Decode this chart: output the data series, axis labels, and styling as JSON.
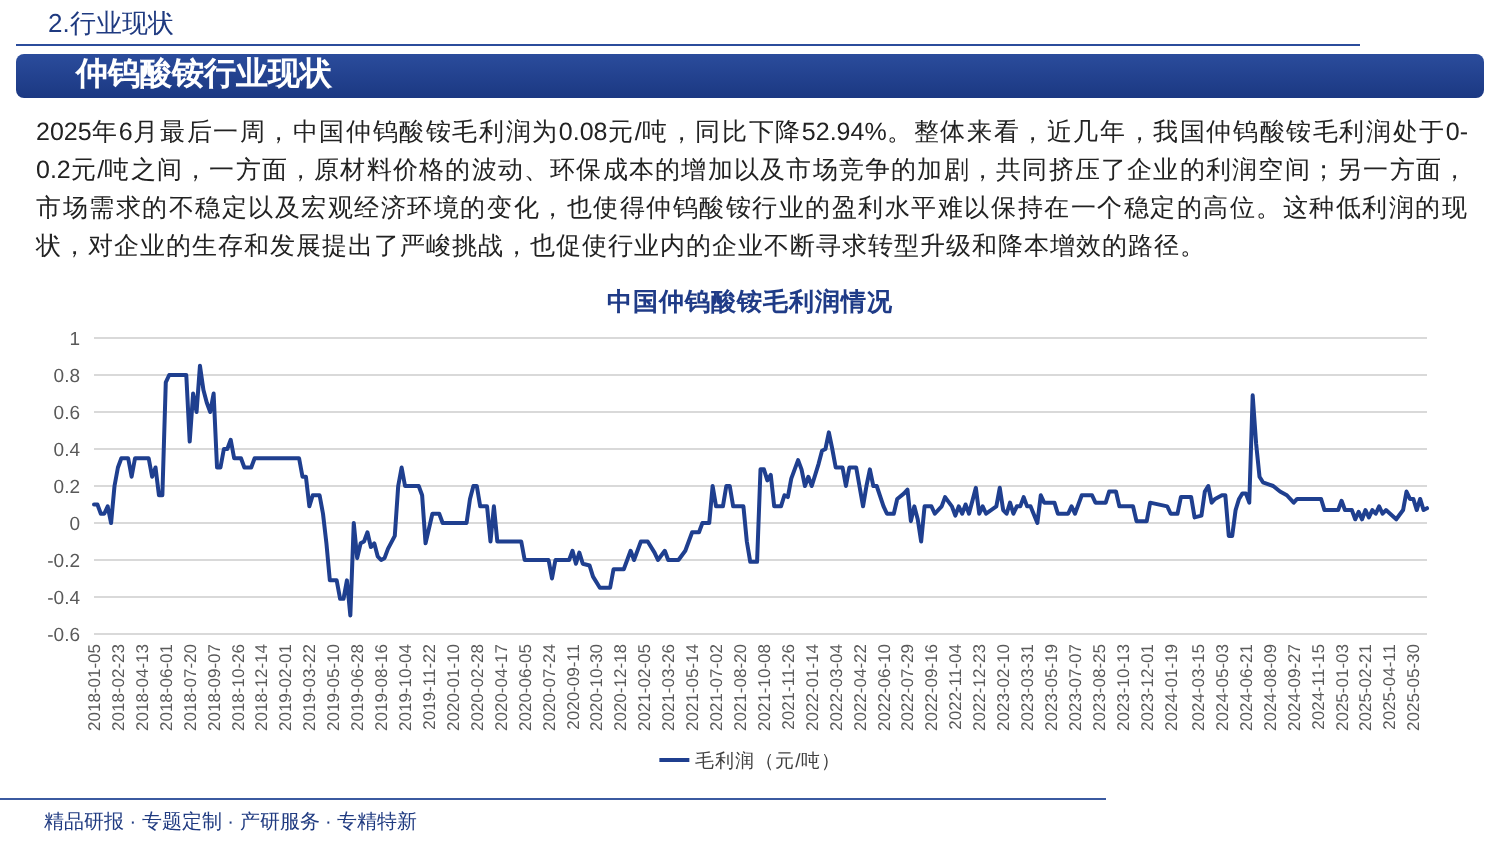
{
  "chart_data": {
    "type": "line",
    "title": "中国仲钨酸铵毛利润情况",
    "annotations": [
      "2.行业现状",
      "仲钨酸铵行业现状",
      "2025年6月最后一周，中国仲钨酸铵毛利润为0.08元/吨，同比下降52.94%。整体来看，近几年，我国仲钨酸铵毛利润处于0-0.2元/吨之间，一方面，原材料价格的波动、环保成本的增加以及市场竞争的加剧，共同挤压了企业的利润空间；另一方面，市场需求的不稳定以及宏观经济环境的变化，也使得仲钨酸铵行业的盈利水平难以保持在一个稳定的高位。这种低利润的现状，对企业的生存和发展提出了严峻挑战，也促使行业内的企业不断寻求转型升级和降本增效的路径。",
      "精品研报 · 专题定制 · 产研服务 · 专精特新"
    ],
    "x": [
      "2018-01-05",
      "2018-01-12",
      "2018-01-19",
      "2018-01-26",
      "2018-02-02",
      "2018-02-09",
      "2018-02-16",
      "2018-02-23",
      "2018-03-02",
      "2018-03-16",
      "2018-03-23",
      "2018-03-30",
      "2018-04-27",
      "2018-05-04",
      "2018-05-11",
      "2018-05-18",
      "2018-05-25",
      "2018-06-01",
      "2018-06-08",
      "2018-07-13",
      "2018-07-20",
      "2018-07-27",
      "2018-08-03",
      "2018-08-10",
      "2018-08-17",
      "2018-08-24",
      "2018-08-31",
      "2018-09-07",
      "2018-09-14",
      "2018-09-21",
      "2018-09-28",
      "2018-10-05",
      "2018-10-12",
      "2018-10-19",
      "2018-11-02",
      "2018-11-09",
      "2018-11-23",
      "2018-11-30",
      "2019-03-01",
      "2019-03-08",
      "2019-03-15",
      "2019-03-22",
      "2019-03-29",
      "2019-04-12",
      "2019-04-19",
      "2019-04-26",
      "2019-05-03",
      "2019-05-17",
      "2019-05-24",
      "2019-05-31",
      "2019-06-07",
      "2019-06-14",
      "2019-06-21",
      "2019-06-28",
      "2019-07-05",
      "2019-07-12",
      "2019-07-19",
      "2019-07-26",
      "2019-08-02",
      "2019-08-09",
      "2019-08-16",
      "2019-08-23",
      "2019-08-30",
      "2019-09-13",
      "2019-09-20",
      "2019-09-27",
      "2019-10-04",
      "2019-11-01",
      "2019-11-08",
      "2019-11-15",
      "2019-11-29",
      "2019-12-13",
      "2019-12-20",
      "2020-02-07",
      "2020-02-14",
      "2020-02-21",
      "2020-02-28",
      "2020-03-06",
      "2020-03-20",
      "2020-03-27",
      "2020-04-03",
      "2020-04-10",
      "2020-05-29",
      "2020-06-05",
      "2020-07-24",
      "2020-07-31",
      "2020-08-07",
      "2020-09-04",
      "2020-09-11",
      "2020-09-18",
      "2020-09-25",
      "2020-10-02",
      "2020-10-16",
      "2020-10-23",
      "2020-11-06",
      "2020-11-27",
      "2020-12-04",
      "2020-12-25",
      "2021-01-01",
      "2021-01-08",
      "2021-01-15",
      "2021-01-29",
      "2021-02-12",
      "2021-02-26",
      "2021-03-05",
      "2021-03-19",
      "2021-03-26",
      "2021-04-16",
      "2021-04-30",
      "2021-05-14",
      "2021-05-28",
      "2021-06-04",
      "2021-06-18",
      "2021-06-25",
      "2021-07-02",
      "2021-07-16",
      "2021-07-23",
      "2021-07-30",
      "2021-08-06",
      "2021-08-27",
      "2021-09-03",
      "2021-09-10",
      "2021-09-24",
      "2021-10-01",
      "2021-10-08",
      "2021-10-15",
      "2021-10-22",
      "2021-10-29",
      "2021-11-12",
      "2021-11-19",
      "2021-11-26",
      "2021-12-03",
      "2021-12-10",
      "2021-12-17",
      "2021-12-24",
      "2021-12-31",
      "2022-01-07",
      "2022-01-14",
      "2022-01-28",
      "2022-02-04",
      "2022-02-11",
      "2022-02-18",
      "2022-02-25",
      "2022-03-04",
      "2022-03-18",
      "2022-03-25",
      "2022-04-01",
      "2022-04-15",
      "2022-04-29",
      "2022-05-06",
      "2022-05-13",
      "2022-05-20",
      "2022-05-27",
      "2022-06-10",
      "2022-06-17",
      "2022-07-01",
      "2022-07-08",
      "2022-07-22",
      "2022-07-29",
      "2022-08-05",
      "2022-08-12",
      "2022-08-19",
      "2022-08-26",
      "2022-09-02",
      "2022-09-16",
      "2022-09-23",
      "2022-10-07",
      "2022-10-14",
      "2022-10-28",
      "2022-11-04",
      "2022-11-11",
      "2022-11-18",
      "2022-11-25",
      "2022-12-02",
      "2022-12-16",
      "2022-12-23",
      "2022-12-30",
      "2023-01-06",
      "2023-01-27",
      "2023-02-03",
      "2023-02-10",
      "2023-02-17",
      "2023-02-24",
      "2023-03-03",
      "2023-03-10",
      "2023-03-17",
      "2023-03-24",
      "2023-03-31",
      "2023-04-07",
      "2023-04-21",
      "2023-04-28",
      "2023-05-05",
      "2023-05-26",
      "2023-06-02",
      "2023-06-23",
      "2023-06-30",
      "2023-07-07",
      "2023-07-21",
      "2023-08-11",
      "2023-08-18",
      "2023-09-08",
      "2023-09-15",
      "2023-09-29",
      "2023-10-06",
      "2023-11-03",
      "2023-11-10",
      "2023-12-01",
      "2023-12-08",
      "2024-01-12",
      "2024-01-19",
      "2024-02-02",
      "2024-02-09",
      "2024-03-01",
      "2024-03-08",
      "2024-03-22",
      "2024-03-29",
      "2024-04-05",
      "2024-04-12",
      "2024-04-19",
      "2024-05-03",
      "2024-05-10",
      "2024-05-17",
      "2024-05-24",
      "2024-05-31",
      "2024-06-07",
      "2024-06-14",
      "2024-06-21",
      "2024-06-28",
      "2024-07-05",
      "2024-07-12",
      "2024-07-19",
      "2024-07-26",
      "2024-08-16",
      "2024-08-30",
      "2024-09-13",
      "2024-09-27",
      "2024-10-04",
      "2024-11-22",
      "2024-11-29",
      "2024-12-27",
      "2025-01-03",
      "2025-01-10",
      "2025-01-24",
      "2025-01-31",
      "2025-02-07",
      "2025-02-14",
      "2025-02-21",
      "2025-02-28",
      "2025-03-07",
      "2025-03-14",
      "2025-03-21",
      "2025-03-28",
      "2025-04-04",
      "2025-04-25",
      "2025-05-09",
      "2025-05-16",
      "2025-05-23",
      "2025-05-30",
      "2025-06-06",
      "2025-06-13",
      "2025-06-20",
      "2025-06-27"
    ],
    "series": [
      {
        "name": "毛利润（元/吨）",
        "color": "#1f3f8f",
        "values": [
          0.1,
          0.1,
          0.05,
          0.05,
          0.09,
          0,
          0.2,
          0.3,
          0.35,
          0.35,
          0.25,
          0.35,
          0.35,
          0.25,
          0.3,
          0.15,
          0.15,
          0.76,
          0.8,
          0.8,
          0.44,
          0.7,
          0.6,
          0.85,
          0.72,
          0.65,
          0.6,
          0.7,
          0.3,
          0.3,
          0.4,
          0.4,
          0.45,
          0.35,
          0.35,
          0.3,
          0.3,
          0.35,
          0.35,
          0.25,
          0.25,
          0.09,
          0.15,
          0.15,
          0.05,
          -0.11,
          -0.31,
          -0.31,
          -0.41,
          -0.41,
          -0.31,
          -0.5,
          0,
          -0.19,
          -0.11,
          -0.1,
          -0.05,
          -0.13,
          -0.11,
          -0.18,
          -0.2,
          -0.19,
          -0.14,
          -0.07,
          0.2,
          0.3,
          0.2,
          0.2,
          0.15,
          -0.11,
          0.05,
          0.05,
          0,
          0,
          0.13,
          0.2,
          0.2,
          0.09,
          0.09,
          -0.1,
          0.09,
          -0.1,
          -0.1,
          -0.2,
          -0.2,
          -0.3,
          -0.2,
          -0.2,
          -0.15,
          -0.22,
          -0.16,
          -0.22,
          -0.23,
          -0.29,
          -0.35,
          -0.35,
          -0.25,
          -0.25,
          -0.2,
          -0.15,
          -0.2,
          -0.1,
          -0.1,
          -0.16,
          -0.2,
          -0.15,
          -0.2,
          -0.2,
          -0.15,
          -0.05,
          -0.05,
          0,
          0,
          0.2,
          0.09,
          0.09,
          0.2,
          0.2,
          0.09,
          0.09,
          -0.1,
          -0.21,
          -0.21,
          0.29,
          0.29,
          0.23,
          0.26,
          0.09,
          0.09,
          0.15,
          0.14,
          0.24,
          0.29,
          0.34,
          0.29,
          0.2,
          0.25,
          0.2,
          0.32,
          0.39,
          0.4,
          0.49,
          0.4,
          0.3,
          0.3,
          0.2,
          0.3,
          0.3,
          0.09,
          0.2,
          0.29,
          0.2,
          0.2,
          0.09,
          0.05,
          0.05,
          0.13,
          0.16,
          0.18,
          0.01,
          0.09,
          0.02,
          -0.1,
          0.09,
          0.09,
          0.05,
          0.09,
          0.14,
          0.09,
          0.04,
          0.09,
          0.05,
          0.1,
          0.05,
          0.19,
          0.05,
          0.09,
          0.05,
          0.09,
          0.19,
          0.07,
          0.05,
          0.11,
          0.05,
          0.09,
          0.09,
          0.14,
          0.09,
          0.09,
          0,
          0.15,
          0.11,
          0.11,
          0.05,
          0.05,
          0.09,
          0.05,
          0.15,
          0.15,
          0.11,
          0.11,
          0.17,
          0.17,
          0.09,
          0.09,
          0.01,
          0.01,
          0.11,
          0.09,
          0.05,
          0.05,
          0.14,
          0.14,
          0.03,
          0.04,
          0.17,
          0.2,
          0.11,
          0.13,
          0.15,
          0.15,
          -0.07,
          -0.07,
          0.07,
          0.13,
          0.16,
          0.16,
          0.11,
          0.69,
          0.43,
          0.25,
          0.22,
          0.2,
          0.17,
          0.15,
          0.11,
          0.13,
          0.13,
          0.07,
          0.07,
          0.12,
          0.07,
          0.07,
          0.02,
          0.06,
          0.02,
          0.07,
          0.03,
          0.07,
          0.05,
          0.09,
          0.05,
          0.07,
          0.02,
          0.07,
          0.17,
          0.13,
          0.13,
          0.07,
          0.13,
          0.07,
          0.08
        ]
      }
    ],
    "xlim": [
      "2018-01-05",
      "2025-06-27"
    ],
    "xticks": [
      "2018-01-05",
      "2018-02-23",
      "2018-04-13",
      "2018-06-01",
      "2018-07-20",
      "2018-09-07",
      "2018-10-26",
      "2018-12-14",
      "2019-02-01",
      "2019-03-22",
      "2019-05-10",
      "2019-06-28",
      "2019-08-16",
      "2019-10-04",
      "2019-11-22",
      "2020-01-10",
      "2020-02-28",
      "2020-04-17",
      "2020-06-05",
      "2020-07-24",
      "2020-09-11",
      "2020-10-30",
      "2020-12-18",
      "2021-02-05",
      "2021-03-26",
      "2021-05-14",
      "2021-07-02",
      "2021-08-20",
      "2021-10-08",
      "2021-11-26",
      "2022-01-14",
      "2022-03-04",
      "2022-04-22",
      "2022-06-10",
      "2022-07-29",
      "2022-09-16",
      "2022-11-04",
      "2022-12-23",
      "2023-02-10",
      "2023-03-31",
      "2023-05-19",
      "2023-07-07",
      "2023-08-25",
      "2023-10-13",
      "2023-12-01",
      "2024-01-19",
      "2024-03-15",
      "2024-05-03",
      "2024-06-21",
      "2024-08-09",
      "2024-09-27",
      "2024-11-15",
      "2025-01-03",
      "2025-02-21",
      "2025-04-11",
      "2025-05-30"
    ],
    "ylim": [
      -0.6,
      1
    ],
    "yticks": [
      -0.6,
      -0.4,
      -0.2,
      0,
      0.2,
      0.4,
      0.6,
      0.8,
      1
    ],
    "grid": "y",
    "legend": "bottom",
    "marker": "none",
    "line_style": "solid"
  }
}
